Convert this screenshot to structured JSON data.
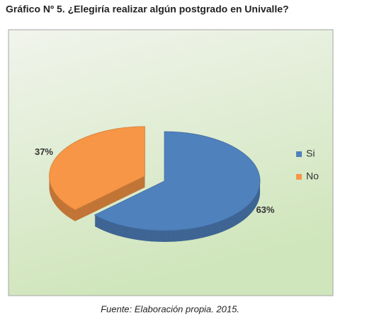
{
  "chart_data": {
    "type": "pie",
    "title": "Gráfico Nº 5. ¿Elegiría realizar algún postgrado en Univalle?",
    "categories": [
      "Si",
      "No"
    ],
    "values": [
      63,
      37
    ],
    "value_labels": [
      "63%",
      "37%"
    ],
    "colors": [
      "#4f81bd",
      "#f79646"
    ],
    "legend": "right",
    "source": "Fuente: Elaboración propia. 2015."
  }
}
